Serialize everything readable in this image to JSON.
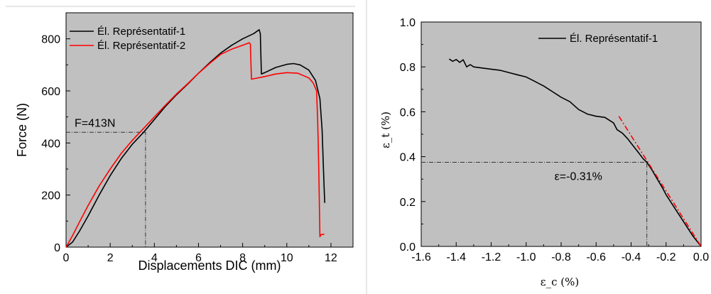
{
  "chart_data": [
    {
      "type": "line",
      "title": "",
      "xlabel": "Displacements DIC (mm)",
      "ylabel": "Force (N)",
      "xlim": [
        0,
        13
      ],
      "ylim": [
        0,
        900
      ],
      "xticks": [
        "0",
        "2",
        "4",
        "6",
        "8",
        "10",
        "12"
      ],
      "yticks": [
        "0",
        "200",
        "400",
        "600",
        "800"
      ],
      "grid": false,
      "legend_position": "top-left",
      "background": "#c0c0c0",
      "series": [
        {
          "name": "Él. Représentatif-1",
          "color": "#000000",
          "x": [
            0.0,
            0.3,
            0.6,
            1.0,
            1.5,
            2.0,
            2.5,
            3.0,
            3.5,
            4.0,
            4.5,
            5.0,
            5.5,
            6.0,
            6.5,
            7.0,
            7.5,
            8.0,
            8.5,
            8.75,
            8.8,
            8.85,
            9.0,
            9.5,
            10.0,
            10.3,
            10.6,
            11.0,
            11.3,
            11.5,
            11.6,
            11.65,
            11.7,
            11.72
          ],
          "y": [
            0,
            20,
            60,
            120,
            200,
            275,
            340,
            395,
            440,
            490,
            540,
            585,
            625,
            668,
            708,
            745,
            775,
            800,
            820,
            835,
            820,
            665,
            670,
            690,
            702,
            705,
            700,
            680,
            640,
            570,
            450,
            330,
            210,
            170
          ]
        },
        {
          "name": "Él. Représentatif-2",
          "color": "#ff0000",
          "x": [
            0.0,
            0.3,
            0.6,
            1.0,
            1.5,
            2.0,
            2.5,
            3.0,
            3.5,
            4.0,
            4.5,
            5.0,
            5.5,
            6.0,
            6.5,
            7.0,
            7.5,
            8.0,
            8.3,
            8.35,
            8.4,
            9.0,
            9.5,
            10.0,
            10.5,
            11.0,
            11.2,
            11.35,
            11.4,
            11.45,
            11.5,
            11.55,
            11.7
          ],
          "y": [
            0,
            45,
            95,
            160,
            235,
            300,
            360,
            410,
            455,
            500,
            545,
            588,
            627,
            668,
            705,
            740,
            760,
            775,
            785,
            780,
            645,
            655,
            665,
            670,
            668,
            650,
            630,
            600,
            480,
            300,
            40,
            48,
            50
          ]
        }
      ],
      "annotations": [
        {
          "text": "F=413N",
          "x": 3.6,
          "y": 441
        }
      ]
    },
    {
      "type": "line",
      "title": "",
      "xlabel": "ε_c (%)",
      "ylabel": "ε_t (%)",
      "xlim": [
        -1.6,
        0.0
      ],
      "ylim": [
        0.0,
        1.0
      ],
      "xticks": [
        "-1.6",
        "-1.4",
        "-1.2",
        "-1.0",
        "-0.8",
        "-0.6",
        "-0.4",
        "-0.2",
        "0.0"
      ],
      "yticks": [
        "0.0",
        "0.2",
        "0.4",
        "0.6",
        "0.8",
        "1.0"
      ],
      "grid": false,
      "legend_position": "top-right",
      "background": "#c0c0c0",
      "series": [
        {
          "name": "Él. Représentatif-1",
          "color": "#000000",
          "x": [
            -1.44,
            -1.42,
            -1.4,
            -1.38,
            -1.36,
            -1.34,
            -1.32,
            -1.3,
            -1.25,
            -1.2,
            -1.15,
            -1.1,
            -1.05,
            -1.0,
            -0.95,
            -0.9,
            -0.85,
            -0.8,
            -0.75,
            -0.7,
            -0.65,
            -0.6,
            -0.55,
            -0.5,
            -0.48,
            -0.45,
            -0.42,
            -0.4,
            -0.36,
            -0.33,
            -0.31,
            -0.28,
            -0.25,
            -0.22,
            -0.2,
            -0.15,
            -0.1,
            -0.05,
            -0.02,
            0.0
          ],
          "y": [
            0.835,
            0.825,
            0.833,
            0.82,
            0.832,
            0.8,
            0.81,
            0.8,
            0.795,
            0.79,
            0.785,
            0.775,
            0.765,
            0.755,
            0.735,
            0.715,
            0.69,
            0.665,
            0.645,
            0.61,
            0.59,
            0.58,
            0.575,
            0.55,
            0.52,
            0.505,
            0.48,
            0.46,
            0.42,
            0.39,
            0.375,
            0.34,
            0.3,
            0.26,
            0.23,
            0.17,
            0.11,
            0.05,
            0.02,
            0.0
          ]
        },
        {
          "name": "",
          "color": "#ff0000",
          "dashed": true,
          "x": [
            -0.47,
            0.0
          ],
          "y": [
            0.58,
            0.0
          ]
        }
      ],
      "annotations": [
        {
          "text": "ε=-0.31%",
          "x": -0.31,
          "y": 0.375
        }
      ]
    }
  ]
}
